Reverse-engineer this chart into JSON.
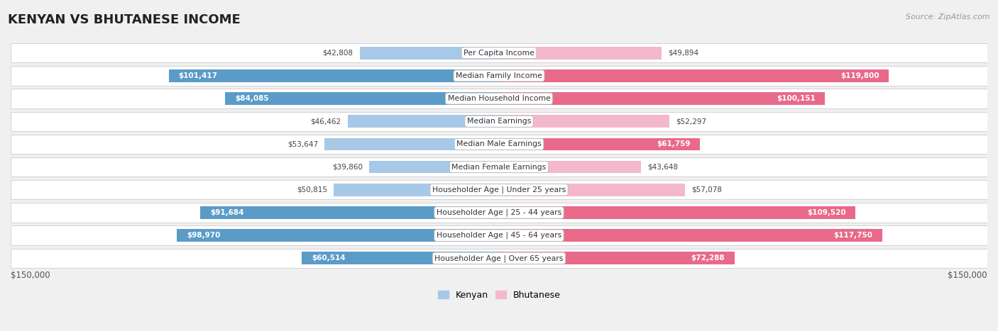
{
  "title": "KENYAN VS BHUTANESE INCOME",
  "source": "Source: ZipAtlas.com",
  "categories": [
    "Per Capita Income",
    "Median Family Income",
    "Median Household Income",
    "Median Earnings",
    "Median Male Earnings",
    "Median Female Earnings",
    "Householder Age | Under 25 years",
    "Householder Age | 25 - 44 years",
    "Householder Age | 45 - 64 years",
    "Householder Age | Over 65 years"
  ],
  "kenyan_values": [
    42808,
    101417,
    84085,
    46462,
    53647,
    39860,
    50815,
    91684,
    98970,
    60514
  ],
  "bhutanese_values": [
    49894,
    119800,
    100151,
    52297,
    61759,
    43648,
    57078,
    109520,
    117750,
    72288
  ],
  "kenyan_labels": [
    "$42,808",
    "$101,417",
    "$84,085",
    "$46,462",
    "$53,647",
    "$39,860",
    "$50,815",
    "$91,684",
    "$98,970",
    "$60,514"
  ],
  "bhutanese_labels": [
    "$49,894",
    "$119,800",
    "$100,151",
    "$52,297",
    "$61,759",
    "$43,648",
    "$57,078",
    "$109,520",
    "$117,750",
    "$72,288"
  ],
  "kenyan_color_light": "#a8c8e8",
  "kenyan_color_dark": "#5b9bc8",
  "bhutanese_color_light": "#f4b8cc",
  "bhutanese_color_dark": "#e8698a",
  "max_value": 150000,
  "background_color": "#f0f0f0",
  "row_bg_color": "#ffffff",
  "title_fontsize": 13,
  "label_fontsize": 8.5,
  "legend_fontsize": 9,
  "axis_label": "$150,000",
  "kenyan_inside_threshold": 60000,
  "bhutanese_inside_threshold": 60000
}
